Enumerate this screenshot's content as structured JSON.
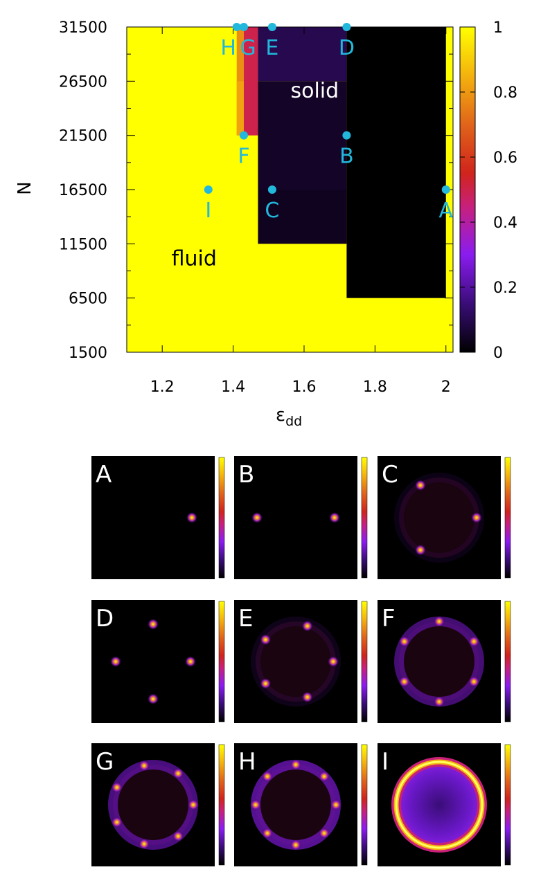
{
  "chart_data": [
    {
      "type": "heatmap",
      "title": "",
      "xlabel": "ε",
      "xlabel_sub": "dd",
      "ylabel": "N",
      "xlim": [
        1.1,
        2.02
      ],
      "ylim": [
        1500,
        31500
      ],
      "x_ticks": [
        "1.2",
        "1.4",
        "1.6",
        "1.8",
        "2"
      ],
      "y_ticks": [
        "1500",
        "6500",
        "11500",
        "16500",
        "21500",
        "26500",
        "31500"
      ],
      "colorbar": {
        "min": 0,
        "max": 1,
        "ticks": [
          "0",
          "0.2",
          "0.4",
          "0.6",
          "0.8",
          "1"
        ]
      },
      "regions": [
        {
          "x0": 1.1,
          "x1": 2.02,
          "y0": 1500,
          "y1": 31500,
          "value": 1.0
        },
        {
          "x0": 1.41,
          "x1": 1.43,
          "y0": 21500,
          "y1": 31500,
          "value": 0.78
        },
        {
          "x0": 1.43,
          "x1": 1.47,
          "y0": 21500,
          "y1": 31500,
          "value": 0.5
        },
        {
          "x0": 1.47,
          "x1": 1.72,
          "y0": 26500,
          "y1": 31500,
          "value": 0.1
        },
        {
          "x0": 1.47,
          "x1": 1.72,
          "y0": 16500,
          "y1": 26500,
          "value": 0.05
        },
        {
          "x0": 1.47,
          "x1": 1.72,
          "y0": 11500,
          "y1": 16500,
          "value": 0.04
        },
        {
          "x0": 1.72,
          "x1": 2.0,
          "y0": 6500,
          "y1": 31500,
          "value": 0.0
        }
      ],
      "region_labels": [
        {
          "text": "fluid",
          "x": 1.29,
          "y": 9500,
          "color": "#000000"
        },
        {
          "text": "solid",
          "x": 1.63,
          "y": 25000,
          "color": "#ffffff"
        }
      ],
      "points": [
        {
          "label": "A",
          "x": 2.0,
          "y": 16500
        },
        {
          "label": "B",
          "x": 1.72,
          "y": 21500
        },
        {
          "label": "C",
          "x": 1.51,
          "y": 16500
        },
        {
          "label": "D",
          "x": 1.72,
          "y": 31500
        },
        {
          "label": "E",
          "x": 1.51,
          "y": 31500
        },
        {
          "label": "F",
          "x": 1.43,
          "y": 21500
        },
        {
          "label": "G",
          "x": 1.43,
          "y": 31500
        },
        {
          "label": "H",
          "x": 1.41,
          "y": 31500
        },
        {
          "label": "I",
          "x": 1.33,
          "y": 16500
        }
      ],
      "point_color": "#22b8dc"
    },
    {
      "type": "heatmap",
      "panels": [
        {
          "label": "A",
          "kind": "spots",
          "count": 1,
          "ring_glow": 0.0
        },
        {
          "label": "B",
          "kind": "spots",
          "count": 2,
          "ring_glow": 0.0
        },
        {
          "label": "C",
          "kind": "spots",
          "count": 3,
          "ring_glow": 0.1
        },
        {
          "label": "D",
          "kind": "spots",
          "count": 4,
          "ring_glow": 0.0
        },
        {
          "label": "E",
          "kind": "spots",
          "count": 5,
          "ring_glow": 0.12
        },
        {
          "label": "F",
          "kind": "spots",
          "count": 6,
          "ring_glow": 0.55
        },
        {
          "label": "G",
          "kind": "spots",
          "count": 7,
          "ring_glow": 0.6
        },
        {
          "label": "H",
          "kind": "spots",
          "count": 8,
          "ring_glow": 0.7
        },
        {
          "label": "I",
          "kind": "ring",
          "count": 0,
          "ring_glow": 1.0
        }
      ]
    }
  ]
}
